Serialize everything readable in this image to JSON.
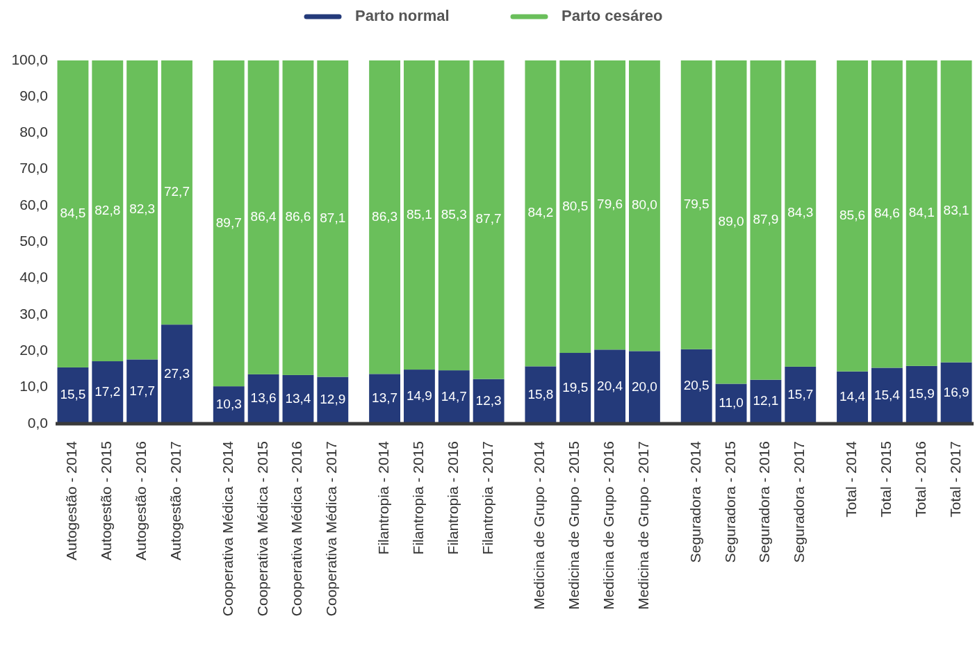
{
  "chart_data": {
    "type": "bar",
    "stacked": true,
    "legend": "top",
    "grid": false,
    "categories": [
      "Autogestão - 2014",
      "Autogestão - 2015",
      "Autogestão - 2016",
      "Autogestão - 2017",
      null,
      "Cooperativa Médica - 2014",
      "Cooperativa Médica - 2015",
      "Cooperativa Médica - 2016",
      "Cooperativa Médica - 2017",
      null,
      "Filantropia - 2014",
      "Filantropia - 2015",
      "Filantropia - 2016",
      "Filantropia - 2017",
      null,
      "Medicina de Grupo - 2014",
      "Medicina de Grupo - 2015",
      "Medicina de Grupo - 2016",
      "Medicina de Grupo - 2017",
      null,
      "Seguradora - 2014",
      "Seguradora - 2015",
      "Seguradora - 2016",
      "Seguradora - 2017",
      null,
      "Total - 2014",
      "Total - 2015",
      "Total - 2016",
      "Total - 2017"
    ],
    "series": [
      {
        "name": "Parto normal",
        "color": "#243a7a",
        "values": [
          15.5,
          17.2,
          17.7,
          27.3,
          null,
          10.3,
          13.6,
          13.4,
          12.9,
          null,
          13.7,
          14.9,
          14.7,
          12.3,
          null,
          15.8,
          19.5,
          20.4,
          20.0,
          null,
          20.5,
          11.0,
          12.1,
          15.7,
          null,
          14.4,
          15.4,
          15.9,
          16.9
        ],
        "value_labels": [
          "15,5",
          "17,2",
          "17,7",
          "27,3",
          null,
          "10,3",
          "13,6",
          "13,4",
          "12,9",
          null,
          "13,7",
          "14,9",
          "14,7",
          "12,3",
          null,
          "15,8",
          "19,5",
          "20,4",
          "20,0",
          null,
          "20,5",
          "11,0",
          "12,1",
          "15,7",
          null,
          "14,4",
          "15,4",
          "15,9",
          "16,9"
        ]
      },
      {
        "name": "Parto cesáreo",
        "color": "#6abf5b",
        "values": [
          84.5,
          82.8,
          82.3,
          72.7,
          null,
          89.7,
          86.4,
          86.6,
          87.1,
          null,
          86.3,
          85.1,
          85.3,
          87.7,
          null,
          84.2,
          80.5,
          79.6,
          80.0,
          null,
          79.5,
          89.0,
          87.9,
          84.3,
          null,
          85.6,
          84.6,
          84.1,
          83.1
        ],
        "value_labels": [
          "84,5",
          "82,8",
          "82,3",
          "72,7",
          null,
          "89,7",
          "86,4",
          "86,6",
          "87,1",
          null,
          "86,3",
          "85,1",
          "85,3",
          "87,7",
          null,
          "84,2",
          "80,5",
          "79,6",
          "80,0",
          null,
          "79,5",
          "89,0",
          "87,9",
          "84,3",
          null,
          "85,6",
          "84,6",
          "84,1",
          "83,1"
        ]
      }
    ],
    "ylim": [
      0,
      100
    ],
    "yticks": [
      {
        "value": 0,
        "label": "0,0"
      },
      {
        "value": 10,
        "label": "10,0"
      },
      {
        "value": 20,
        "label": "20,0"
      },
      {
        "value": 30,
        "label": "30,0"
      },
      {
        "value": 40,
        "label": "40,0"
      },
      {
        "value": 50,
        "label": "50,0"
      },
      {
        "value": 60,
        "label": "60,0"
      },
      {
        "value": 70,
        "label": "70,0"
      },
      {
        "value": 80,
        "label": "80,0"
      },
      {
        "value": 90,
        "label": "90,0"
      },
      {
        "value": 100,
        "label": "100,0"
      }
    ]
  }
}
